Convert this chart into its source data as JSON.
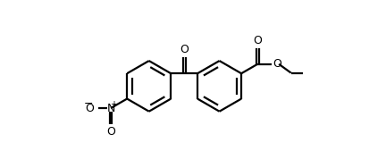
{
  "background_color": "#ffffff",
  "line_color": "#000000",
  "line_width": 1.6,
  "fig_width": 4.32,
  "fig_height": 1.78,
  "dpi": 100,
  "xlim": [
    0,
    10
  ],
  "ylim": [
    0,
    7
  ]
}
